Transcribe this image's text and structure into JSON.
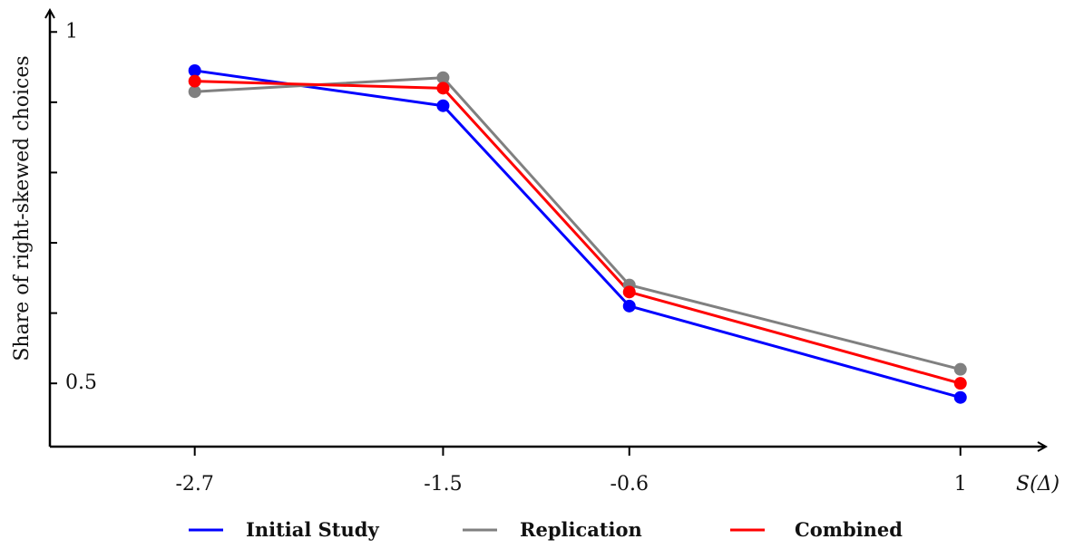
{
  "chart_data": {
    "type": "line",
    "x_categories": [
      "-2.7",
      "-1.5",
      "-0.6",
      "1"
    ],
    "x": [
      -2.7,
      -1.5,
      -0.6,
      1
    ],
    "ylabel": "Share of right-skewed choices",
    "xlabel": "S(Δ)",
    "y_tick_labels": [
      {
        "value": 1.0,
        "label": "1"
      },
      {
        "value": 0.5,
        "label": "0.5"
      }
    ],
    "y_ticks": [
      1.0,
      0.9,
      0.8,
      0.7,
      0.6,
      0.5
    ],
    "ylim": [
      0.41,
      1.03
    ],
    "xlim": [
      -3.4,
      1.4
    ],
    "grid": false,
    "legend_position": "bottom",
    "series": [
      {
        "name": "Initial Study",
        "color": "#0000ff",
        "values": [
          0.945,
          0.895,
          0.61,
          0.48
        ]
      },
      {
        "name": "Replication",
        "color": "#808080",
        "values": [
          0.915,
          0.935,
          0.64,
          0.52
        ]
      },
      {
        "name": "Combined",
        "color": "#ff0000",
        "values": [
          0.93,
          0.92,
          0.63,
          0.5
        ]
      }
    ]
  }
}
